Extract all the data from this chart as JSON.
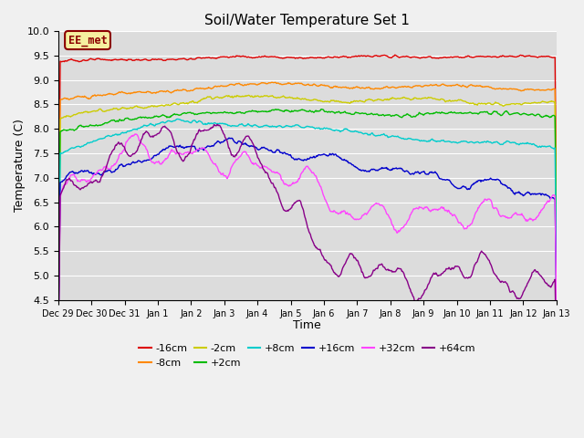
{
  "title": "Soil/Water Temperature Set 1",
  "xlabel": "Time",
  "ylabel": "Temperature (C)",
  "ylim": [
    4.5,
    10.0
  ],
  "background_color": "#dcdcdc",
  "plot_bg_color": "#dcdcdc",
  "grid_color": "#ffffff",
  "annotation_text": "EE_met",
  "annotation_bg": "#f5f0a0",
  "annotation_border": "#8b0000",
  "series": [
    {
      "label": "-16cm",
      "color": "#dd0000"
    },
    {
      "label": "-8cm",
      "color": "#ff8800"
    },
    {
      "label": "-2cm",
      "color": "#cccc00"
    },
    {
      "label": "+2cm",
      "color": "#00bb00"
    },
    {
      "label": "+8cm",
      "color": "#00cccc"
    },
    {
      "label": "+16cm",
      "color": "#0000cc"
    },
    {
      "label": "+32cm",
      "color": "#ff44ff"
    },
    {
      "label": "+64cm",
      "color": "#880088"
    }
  ],
  "x_tick_labels": [
    "Dec 29",
    "Dec 30",
    "Dec 31",
    "Jan 1",
    "Jan 2",
    "Jan 3",
    "Jan 4",
    "Jan 5",
    "Jan 6",
    "Jan 7",
    "Jan 8",
    "Jan 9",
    "Jan 10",
    "Jan 11",
    "Jan 12",
    "Jan 13"
  ]
}
